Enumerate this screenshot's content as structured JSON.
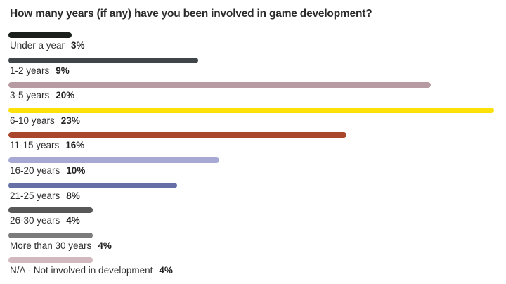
{
  "chart_data": {
    "type": "bar",
    "orientation": "horizontal",
    "title": "How many years (if any) have you been involved in game development?",
    "xlabel": "",
    "ylabel": "",
    "xlim": [
      0,
      23
    ],
    "categories": [
      "Under a year",
      "1-2 years",
      "3-5 years",
      "6-10 years",
      "11-15 years",
      "16-20 years",
      "21-25 years",
      "26-30 years",
      "More than 30 years",
      "N/A - Not involved in development"
    ],
    "values": [
      3,
      9,
      20,
      23,
      16,
      10,
      8,
      4,
      4,
      4
    ],
    "value_labels": [
      "3%",
      "9%",
      "20%",
      "23%",
      "16%",
      "10%",
      "8%",
      "4%",
      "4%",
      "4%"
    ],
    "colors": [
      "#1b1f1c",
      "#3f4548",
      "#b79ba3",
      "#fde10a",
      "#a9462c",
      "#a7a8d4",
      "#6670a6",
      "#585858",
      "#7b7b7b",
      "#d2b8bf"
    ],
    "grid": false,
    "legend": "none"
  }
}
